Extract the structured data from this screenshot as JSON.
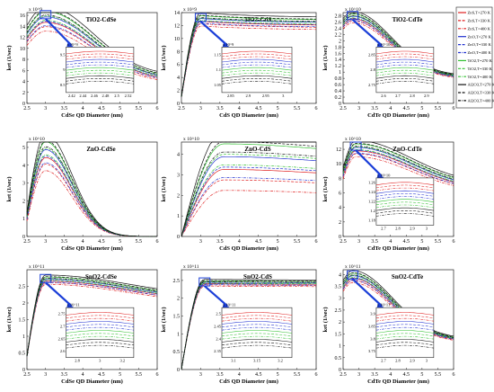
{
  "figure": {
    "legend": [
      {
        "label": "ZnS,T=270 K",
        "color": "#e02020",
        "dash": "solid"
      },
      {
        "label": "ZnS,T=330 K",
        "color": "#e02020",
        "dash": "dashed"
      },
      {
        "label": "ZnS,T=400 K",
        "color": "#e02020",
        "dash": "dashdot"
      },
      {
        "label": "ZnO,T=270 K",
        "color": "#2030d0",
        "dash": "solid"
      },
      {
        "label": "ZnO,T=330 K",
        "color": "#2030d0",
        "dash": "dashed"
      },
      {
        "label": "ZnO,T=400 K",
        "color": "#2030d0",
        "dash": "dashdot"
      },
      {
        "label": "TiO2,T=270 K",
        "color": "#30c030",
        "dash": "solid"
      },
      {
        "label": "TiO2,T=330 K",
        "color": "#30c030",
        "dash": "dashed"
      },
      {
        "label": "TiO2,T=400 K",
        "color": "#30c030",
        "dash": "dashdot"
      },
      {
        "label": "Al2O3,T=270 K",
        "color": "#111111",
        "dash": "solid"
      },
      {
        "label": "Al2O3,T=330 K",
        "color": "#111111",
        "dash": "dashed"
      },
      {
        "label": "Al2O3,T=400 K",
        "color": "#111111",
        "dash": "dashdot"
      }
    ]
  },
  "chart_data": [
    {
      "type": "line",
      "title": "TiO2-CdSe",
      "xlabel": "CdSe QD Diameter (nm)",
      "ylabel": "ket (1/sec)",
      "exponent": "x 10^9",
      "xlim": [
        2.5,
        6
      ],
      "ylim": [
        0,
        16.5
      ],
      "xticks": [
        2.5,
        3,
        3.5,
        4,
        4.5,
        5,
        5.5,
        6
      ],
      "yticks": [
        0,
        2,
        4,
        6,
        8,
        10,
        12,
        14,
        16
      ],
      "shape": {
        "kind": "rise_decay",
        "peak_x": 3.0,
        "peak_y": 16.2,
        "start_y": 13.0,
        "end_y": 4.6,
        "decay": 0.32
      },
      "spread": 0.11,
      "inset": {
        "exponent": "x 10^9",
        "xticks": [
          2.42,
          2.44,
          2.46,
          2.48,
          2.5,
          2.52
        ],
        "yticks": [
          8.5,
          9,
          9.5
        ]
      }
    },
    {
      "type": "line",
      "title": "TiO2-CdS",
      "xlabel": "CdS QD Diameter (nm)",
      "ylabel": "ket (1/sec)",
      "exponent": "x 10^9",
      "xlim": [
        2.5,
        6
      ],
      "ylim": [
        0,
        14
      ],
      "xticks": [
        2.5,
        3,
        3.5,
        4,
        4.5,
        5,
        5.5,
        6
      ],
      "yticks": [
        0,
        2,
        4,
        6,
        8,
        10,
        12,
        14
      ],
      "shape": {
        "kind": "saturate",
        "peak_x": 3.0,
        "peak_y": 13.3,
        "start_y": 1.0,
        "end_y": 12.6,
        "decay": 0.02
      },
      "spread": 0.06,
      "inset": {
        "exponent": "x 10^9",
        "xticks": [
          2.85,
          2.9,
          2.95,
          3
        ],
        "yticks": [
          1.05,
          1.1,
          1.15
        ]
      }
    },
    {
      "type": "line",
      "title": "TiO2-CdTe",
      "xlabel": "CdTe QD Diameter (nm)",
      "ylabel": "ket (1/sec)",
      "exponent": "x 10^10",
      "xlim": [
        2.5,
        6
      ],
      "ylim": [
        0,
        2.9
      ],
      "xticks": [
        2.5,
        3,
        3.5,
        4,
        4.5,
        5,
        5.5,
        6
      ],
      "yticks": [
        0,
        0.2,
        0.4,
        0.6,
        0.8,
        1,
        1.2,
        1.4,
        1.6,
        1.8,
        2,
        2.2,
        2.4,
        2.6,
        2.8
      ],
      "shape": {
        "kind": "rise_decay",
        "peak_x": 2.8,
        "peak_y": 2.82,
        "start_y": 2.6,
        "end_y": 0.85,
        "decay": 0.38
      },
      "spread": 0.05,
      "inset": {
        "exponent": "x 10^10",
        "xticks": [
          2.6,
          2.7,
          2.8,
          2.9
        ],
        "yticks": [
          2.75,
          2.8,
          2.85
        ]
      }
    },
    {
      "type": "line",
      "title": "ZnO-CdSe",
      "xlabel": "CdSe QD Diameter (nm)",
      "ylabel": "ket (1/sec)",
      "exponent": "x 10^10",
      "xlim": [
        2.5,
        6
      ],
      "ylim": [
        0,
        5.3
      ],
      "xticks": [
        2.5,
        3,
        3.5,
        4,
        4.5,
        5,
        5.5,
        6
      ],
      "yticks": [
        0,
        1,
        2,
        3,
        4,
        5
      ],
      "shape": {
        "kind": "rise_decay",
        "peak_x": 3.0,
        "peak_y": 5.1,
        "start_y": 1.2,
        "end_y": 0.0,
        "decay": 1.05
      },
      "spread": 0.16,
      "inset": null
    },
    {
      "type": "line",
      "title": "ZnO-CdS",
      "xlabel": "CdS QD Diameter (nm)",
      "ylabel": "ket (1/sec)",
      "exponent": "x 10^10",
      "xlim": [
        2.5,
        6
      ],
      "ylim": [
        0,
        4.6
      ],
      "xticks": [
        3,
        3.5,
        4,
        4.5,
        5,
        5.5,
        6
      ],
      "yticks": [
        0,
        1,
        2,
        3,
        4
      ],
      "shape": {
        "kind": "rise_decay",
        "peak_x": 3.6,
        "peak_y": 4.2,
        "start_y": 0.0,
        "end_y": 3.7,
        "decay": 0.08
      },
      "spread": 0.27,
      "inset": null
    },
    {
      "type": "line",
      "title": "ZnO-CdTe",
      "xlabel": "CdTe QD Diameter (nm)",
      "ylabel": "ket (1/sec)",
      "exponent": "x 10^10",
      "xlim": [
        2.5,
        6
      ],
      "ylim": [
        0,
        13
      ],
      "xticks": [
        2.5,
        3,
        3.5,
        4,
        4.5,
        5,
        5.5,
        6
      ],
      "yticks": [
        0,
        2,
        4,
        6,
        8,
        10,
        12
      ],
      "shape": {
        "kind": "rise_decay",
        "peak_x": 2.9,
        "peak_y": 12.5,
        "start_y": 9.0,
        "end_y": 6.8,
        "decay": 0.18
      },
      "spread": 0.07,
      "inset": {
        "exponent": "x 10^10",
        "xticks": [
          2.7,
          2.8,
          2.9,
          3
        ],
        "yticks": [
          1.18,
          1.2,
          1.22,
          1.24,
          1.26
        ]
      }
    },
    {
      "type": "line",
      "title": "SnO2-CdSe",
      "xlabel": "CdSe QD Diameter (nm)",
      "ylabel": "ket (1/sec)",
      "exponent": "x 10^11",
      "xlim": [
        2.5,
        6
      ],
      "ylim": [
        0,
        3.0
      ],
      "xticks": [
        2.5,
        3,
        3.5,
        4,
        4.5,
        5,
        5.5,
        6
      ],
      "yticks": [
        0,
        0.5,
        1,
        1.5,
        2,
        2.5
      ],
      "shape": {
        "kind": "rise_decay",
        "peak_x": 3.0,
        "peak_y": 2.75,
        "start_y": 0.4,
        "end_y": 2.1,
        "decay": 0.11
      },
      "spread": 0.04,
      "inset": {
        "exponent": "x 10^11",
        "xticks": [
          2.8,
          3,
          3.2
        ],
        "yticks": [
          2.6,
          2.65,
          2.7,
          2.75
        ]
      }
    },
    {
      "type": "line",
      "title": "SnO2-CdS",
      "xlabel": "CdS QD Diameter (nm)",
      "ylabel": "ket (1/sec)",
      "exponent": "x 10^11",
      "xlim": [
        2.5,
        6
      ],
      "ylim": [
        0,
        2.8
      ],
      "xticks": [
        3,
        3.5,
        4,
        4.5,
        5,
        5.5,
        6
      ],
      "yticks": [
        0,
        0.5,
        1,
        1.5,
        2,
        2.5
      ],
      "shape": {
        "kind": "saturate",
        "peak_x": 3.1,
        "peak_y": 2.47,
        "start_y": 0.0,
        "end_y": 2.45,
        "decay": 0.005
      },
      "spread": 0.03,
      "inset": {
        "exponent": "x 10^11",
        "xticks": [
          3.1,
          3.15,
          3.2
        ],
        "yticks": [
          2.35,
          2.4,
          2.45,
          2.5
        ]
      }
    },
    {
      "type": "line",
      "title": "SnO2-CdTe",
      "xlabel": "CdTe QD Diameter (nm)",
      "ylabel": "ket (1/sec)",
      "exponent": "x 10^11",
      "xlim": [
        2.5,
        6
      ],
      "ylim": [
        0,
        4.2
      ],
      "xticks": [
        2.5,
        3,
        3.5,
        4,
        4.5,
        5,
        5.5,
        6
      ],
      "yticks": [
        0,
        0.5,
        1,
        1.5,
        2,
        2.5,
        3,
        3.5,
        4
      ],
      "shape": {
        "kind": "rise_decay",
        "peak_x": 2.8,
        "peak_y": 4.0,
        "start_y": 3.6,
        "end_y": 1.25,
        "decay": 0.36
      },
      "spread": 0.05,
      "inset": {
        "exponent": "x 10^11",
        "xticks": [
          2.7,
          2.8,
          2.9,
          3
        ],
        "yticks": [
          3.75,
          3.8,
          3.85,
          3.9
        ]
      }
    }
  ]
}
